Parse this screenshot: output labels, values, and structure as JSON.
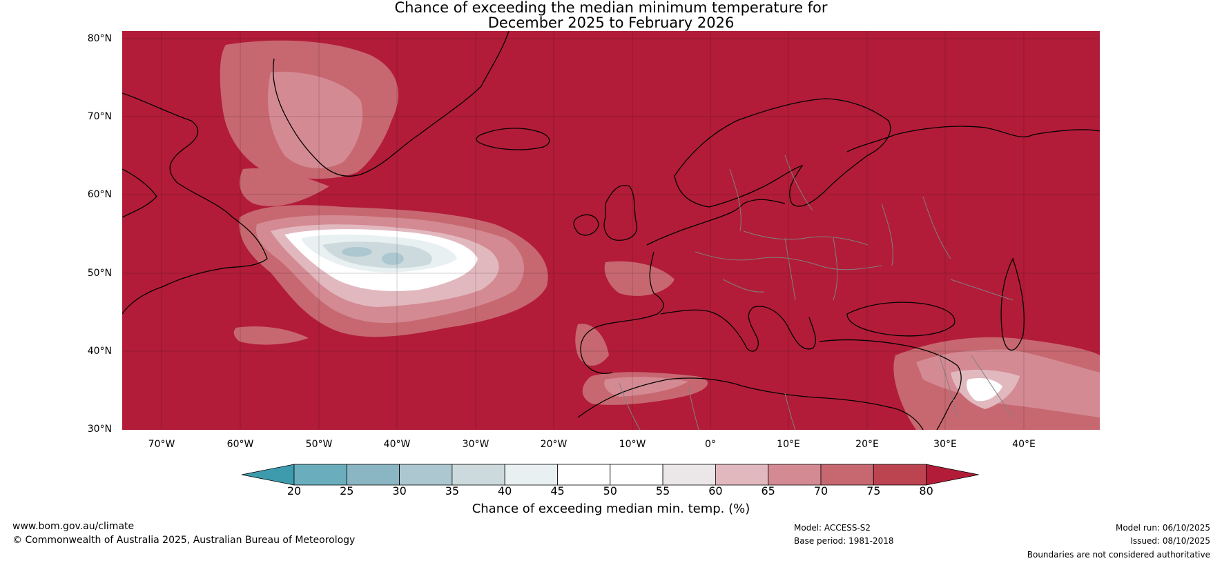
{
  "title": {
    "line1": "Chance of exceeding the median minimum temperature for",
    "line2": "December 2025 to February 2026"
  },
  "map": {
    "lat_labels": [
      "80°N",
      "70°N",
      "60°N",
      "50°N",
      "40°N",
      "30°N"
    ],
    "lon_labels": [
      "70°W",
      "60°W",
      "50°W",
      "40°W",
      "30°W",
      "20°W",
      "10°W",
      "0°",
      "10°E",
      "20°E",
      "30°E",
      "40°E"
    ],
    "colors": {
      "ocean_high": "#b21c38",
      "land_high": "#b21c38",
      "coast": "#000000",
      "border": "#808080"
    }
  },
  "colorbar": {
    "title": "Chance of exceeding median min. temp. (%)",
    "tick_labels": [
      "20",
      "25",
      "30",
      "35",
      "40",
      "45",
      "50",
      "55",
      "60",
      "65",
      "70",
      "75",
      "80"
    ],
    "colors": [
      "#3e9bae",
      "#6aaebe",
      "#8ab5c2",
      "#acc7cf",
      "#cddadd",
      "#e8f0f1",
      "#ffffff",
      "#ffffff",
      "#ebe6e8",
      "#e2b8bf",
      "#d48a93",
      "#c76870",
      "#bc4350",
      "#b21c38"
    ]
  },
  "footer": {
    "url": "www.bom.gov.au/climate",
    "copyright": "© Commonwealth of Australia 2025, Australian Bureau of Meteorology",
    "model": "Model: ACCESS-S2",
    "base_period": "Base period: 1981-2018",
    "model_run": "Model run: 06/10/2025",
    "issued": "Issued: 08/10/2025",
    "disclaimer": "Boundaries are not considered authoritative"
  }
}
